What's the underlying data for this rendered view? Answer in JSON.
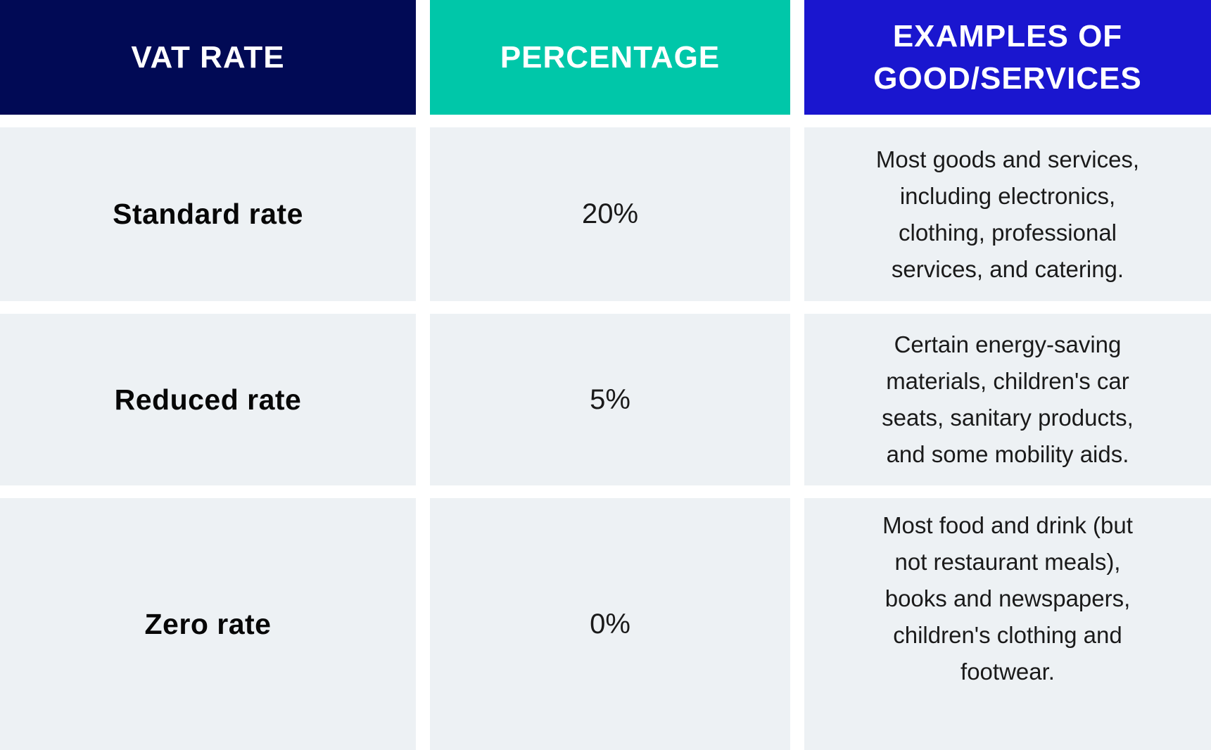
{
  "chart_data": {
    "type": "table",
    "column_headers": [
      "VAT RATE",
      "PERCENTAGE",
      "EXAMPLES OF GOOD/SERVICES"
    ],
    "rows": [
      {
        "vat_rate": "Standard rate",
        "percentage": "20%",
        "percentage_value": 20,
        "examples": "Most goods and services, including electronics, clothing, professional services, and catering."
      },
      {
        "vat_rate": "Reduced rate",
        "percentage": "5%",
        "percentage_value": 5,
        "examples": "Certain energy-saving materials, children's car seats, sanitary products, and some mobility aids."
      },
      {
        "vat_rate": "Zero rate",
        "percentage": "0%",
        "percentage_value": 0,
        "examples": "Most food and drink (but not restaurant meals), books and newspapers, children's clothing and footwear."
      }
    ],
    "layout_hints": {
      "header_alignment": "center",
      "cell_alignment": "center",
      "grid": "white gaps between colored cells"
    }
  },
  "display": {
    "headers": [
      {
        "text": "VAT RATE",
        "bg": "#010a55"
      },
      {
        "text": "PERCENTAGE",
        "bg": "#00c7a9"
      },
      {
        "text": "EXAMPLES OF\nGOOD/SERVICES",
        "bg": "#1a16cf"
      }
    ],
    "rows": [
      {
        "rate": "Standard rate",
        "percentage": "20%",
        "examples": "Most goods and services,\nincluding electronics,\nclothing, professional\nservices, and catering."
      },
      {
        "rate": "Reduced rate",
        "percentage": "5%",
        "examples": "Certain energy-saving\nmaterials, children's car\nseats, sanitary products,\nand some mobility aids."
      },
      {
        "rate": "Zero rate",
        "percentage": "0%",
        "examples": "Most food and drink (but\nnot restaurant meals),\nbooks and newspapers,\nchildren's clothing and\nfootwear."
      }
    ]
  },
  "colors": {
    "header_navy": "#010a55",
    "header_teal": "#00c7a9",
    "header_blue": "#1a16cf",
    "cell_background": "#edf1f4",
    "gap_background": "#ffffff",
    "header_text": "#ffffff",
    "body_text": "#1a1a1a"
  }
}
